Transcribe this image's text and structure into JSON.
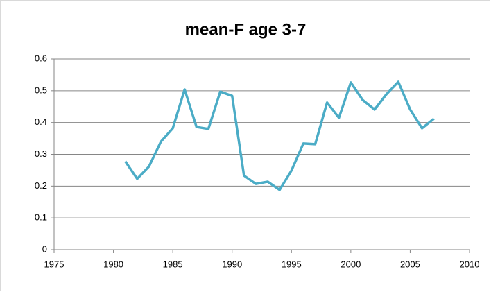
{
  "chart_data": {
    "type": "line",
    "title": "mean-F age 3-7",
    "x": [
      1981,
      1982,
      1983,
      1984,
      1985,
      1986,
      1987,
      1988,
      1989,
      1990,
      1991,
      1992,
      1993,
      1994,
      1995,
      1996,
      1997,
      1998,
      1999,
      2000,
      2001,
      2002,
      2003,
      2004,
      2005,
      2006,
      2007
    ],
    "series": [
      {
        "name": "mean-F age 3-7",
        "color": "#4bacc6",
        "values": [
          0.278,
          0.223,
          0.262,
          0.34,
          0.382,
          0.504,
          0.386,
          0.38,
          0.497,
          0.484,
          0.233,
          0.207,
          0.214,
          0.188,
          0.249,
          0.334,
          0.332,
          0.463,
          0.415,
          0.526,
          0.471,
          0.441,
          0.489,
          0.528,
          0.441,
          0.382,
          0.412
        ]
      }
    ],
    "xlim": [
      1975,
      2010
    ],
    "xticks": [
      1975,
      1980,
      1985,
      1990,
      1995,
      2000,
      2005,
      2010
    ],
    "ylim": [
      0,
      0.6
    ],
    "yticks": [
      0,
      0.1,
      0.2,
      0.3,
      0.4,
      0.5,
      0.6
    ],
    "grid": true
  }
}
